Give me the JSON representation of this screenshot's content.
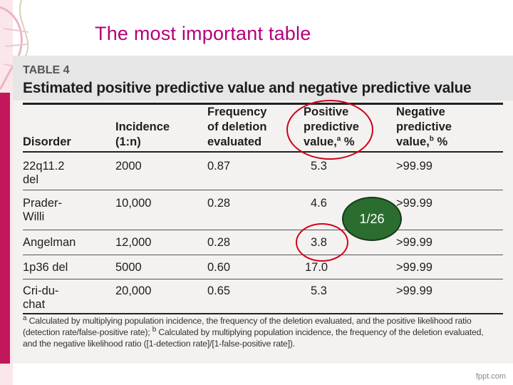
{
  "slide": {
    "title": "The most important table",
    "watermark": "fppt.com",
    "badge": "1/26"
  },
  "table": {
    "label": "TABLE 4",
    "title": "Estimated positive predictive value and negative predictive value",
    "headers": {
      "disorder": "Disorder",
      "incidence": [
        "Incidence",
        "(1:n)"
      ],
      "frequency": [
        "Frequency",
        "of deletion",
        "evaluated"
      ],
      "ppv": [
        "Positive",
        "predictive",
        "value,",
        "a",
        " %"
      ],
      "npv": [
        "Negative",
        "predictive",
        "value,",
        "b",
        " %"
      ]
    },
    "rows": [
      {
        "disorder": [
          "22q11.2",
          "del"
        ],
        "incidence": "2000",
        "frequency": "0.87",
        "ppv": "5.3",
        "npv": ">99.99"
      },
      {
        "disorder": [
          "Prader-",
          "Willi"
        ],
        "incidence": "10,000",
        "frequency": "0.28",
        "ppv": "4.6",
        "npv": ">99.99"
      },
      {
        "disorder": [
          "Angelman"
        ],
        "incidence": "12,000",
        "frequency": "0.28",
        "ppv": "3.8",
        "npv": ">99.99"
      },
      {
        "disorder": [
          "1p36 del"
        ],
        "incidence": "5000",
        "frequency": "0.60",
        "ppv": "17.0",
        "npv": ">99.99"
      },
      {
        "disorder": [
          "Cri-du-",
          "chat"
        ],
        "incidence": "20,000",
        "frequency": "0.65",
        "ppv": "5.3",
        "npv": ">99.99"
      }
    ],
    "footnote": {
      "a_marker": "a",
      "line1": " Calculated by multiplying population incidence, the frequency of the deletion evaluated, and the positive likelihood ratio",
      "line2a": "(detection rate/false-positive rate); ",
      "b_marker": "b",
      "line2b": " Calculated by multiplying population incidence, the frequency of the deletion evaluated,",
      "line3": "and the negative likelihood ratio ([1-detection rate]/[1-false-positive rate])."
    }
  },
  "colors": {
    "title": "#b4007a",
    "annotation_circle": "#d0021b",
    "badge_fill": "#2b6d2e"
  }
}
